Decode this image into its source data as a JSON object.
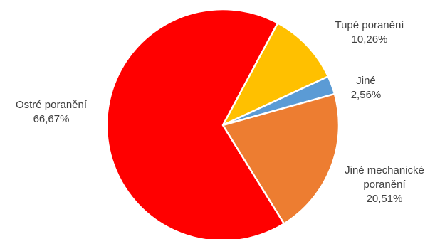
{
  "chart_data": {
    "type": "pie",
    "title": "",
    "start_angle_deg": 28.2,
    "direction": "clockwise",
    "legend": "none",
    "slices": [
      {
        "name": "Tupé poranění",
        "label_lines": [
          "Tupé poranění"
        ],
        "value": 10.26,
        "value_label": "10,26%",
        "color": "#FFC000"
      },
      {
        "name": "Jiné",
        "label_lines": [
          "Jiné"
        ],
        "value": 2.56,
        "value_label": "2,56%",
        "color": "#5B9BD5"
      },
      {
        "name": "Jiné mechanické poranění",
        "label_lines": [
          "Jiné mechanické",
          "poranění"
        ],
        "value": 20.51,
        "value_label": "20,51%",
        "color": "#ED7D31"
      },
      {
        "name": "Ostré poranění",
        "label_lines": [
          "Ostré poranění"
        ],
        "value": 66.67,
        "value_label": "66,67%",
        "color": "#FF0000"
      }
    ]
  }
}
